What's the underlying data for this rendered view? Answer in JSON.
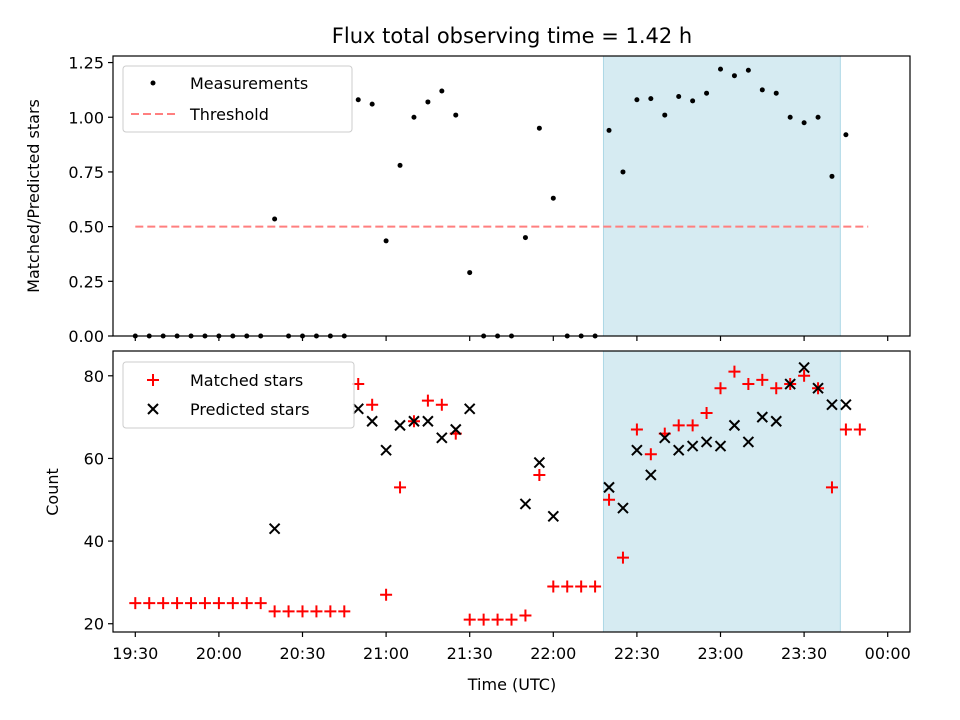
{
  "colors": {
    "shade": "#add8e6",
    "threshold": "#ff7f7f",
    "measurement": "#000000",
    "matched": "#ff0000",
    "predicted": "#000000"
  },
  "chart_data": [
    {
      "type": "scatter",
      "title": "Flux total observing time = 1.42 h",
      "xlabel": "",
      "ylabel": "Matched/Predicted stars",
      "xlim": [
        1162,
        1448
      ],
      "ylim": [
        0,
        1.28
      ],
      "xticks_minutes": [
        1170,
        1200,
        1230,
        1260,
        1290,
        1320,
        1350,
        1380,
        1410,
        1440
      ],
      "yticks": [
        "0.00",
        "0.25",
        "0.50",
        "0.75",
        "1.00",
        "1.25"
      ],
      "shaded_region": [
        1338,
        1423
      ],
      "legend": {
        "position": "top-left",
        "entries": [
          "Measurements",
          "Threshold"
        ]
      },
      "threshold": {
        "name": "Threshold",
        "y": 0.5,
        "x_range": [
          1170,
          1433
        ]
      },
      "series": [
        {
          "name": "Measurements",
          "x": [
            1170,
            1175,
            1180,
            1185,
            1190,
            1195,
            1200,
            1205,
            1210,
            1215,
            1220,
            1225,
            1230,
            1235,
            1240,
            1245,
            1250,
            1255,
            1260,
            1265,
            1270,
            1275,
            1280,
            1285,
            1290,
            1295,
            1300,
            1305,
            1310,
            1315,
            1320,
            1325,
            1330,
            1335,
            1340,
            1345,
            1350,
            1355,
            1360,
            1365,
            1370,
            1375,
            1380,
            1385,
            1390,
            1395,
            1400,
            1405,
            1410,
            1415,
            1420,
            1425
          ],
          "y": [
            0,
            0,
            0,
            0,
            0,
            0,
            0,
            0,
            0,
            0,
            0.535,
            0,
            0,
            0,
            0,
            0,
            1.08,
            1.06,
            0.435,
            0.78,
            1.0,
            1.07,
            1.12,
            1.01,
            0.29,
            0,
            0,
            0,
            0.45,
            0.95,
            0.63,
            0,
            0,
            0,
            0.94,
            0.75,
            1.08,
            1.085,
            1.01,
            1.095,
            1.075,
            1.11,
            1.22,
            1.19,
            1.215,
            1.125,
            1.11,
            1.0,
            0.975,
            1.0,
            0.73,
            0.92
          ]
        }
      ]
    },
    {
      "type": "scatter",
      "title": "",
      "xlabel": "Time (UTC)",
      "ylabel": "Count",
      "xlim": [
        1162,
        1448
      ],
      "ylim": [
        18,
        86
      ],
      "xticks_minutes": [
        1170,
        1200,
        1230,
        1260,
        1290,
        1320,
        1350,
        1380,
        1410,
        1440
      ],
      "xtick_labels": [
        "19:30",
        "20:00",
        "20:30",
        "21:00",
        "21:30",
        "22:00",
        "22:30",
        "23:00",
        "23:30",
        "00:00"
      ],
      "yticks": [
        "20",
        "40",
        "60",
        "80"
      ],
      "shaded_region": [
        1338,
        1423
      ],
      "legend": {
        "position": "top-left",
        "entries": [
          "Matched stars",
          "Predicted stars"
        ]
      },
      "series": [
        {
          "name": "Matched stars",
          "x": [
            1170,
            1175,
            1180,
            1185,
            1190,
            1195,
            1200,
            1205,
            1210,
            1215,
            1220,
            1225,
            1230,
            1235,
            1240,
            1245,
            1250,
            1255,
            1260,
            1265,
            1270,
            1275,
            1280,
            1285,
            1290,
            1295,
            1300,
            1305,
            1310,
            1315,
            1320,
            1325,
            1330,
            1335,
            1340,
            1345,
            1350,
            1355,
            1360,
            1365,
            1370,
            1375,
            1380,
            1385,
            1390,
            1395,
            1400,
            1405,
            1410,
            1415,
            1420,
            1425,
            1430
          ],
          "y": [
            25,
            25,
            25,
            25,
            25,
            25,
            25,
            25,
            25,
            25,
            23,
            23,
            23,
            23,
            23,
            23,
            78,
            73,
            27,
            53,
            69,
            74,
            73,
            66,
            21,
            21,
            21,
            21,
            22,
            56,
            29,
            29,
            29,
            29,
            50,
            36,
            67,
            61,
            66,
            68,
            68,
            71,
            77,
            81,
            78,
            79,
            77,
            78,
            80,
            77,
            53,
            67,
            67
          ]
        },
        {
          "name": "Predicted stars",
          "x": [
            1220,
            1250,
            1255,
            1260,
            1265,
            1270,
            1275,
            1280,
            1285,
            1290,
            1310,
            1315,
            1320,
            1340,
            1345,
            1350,
            1355,
            1360,
            1365,
            1370,
            1375,
            1380,
            1385,
            1390,
            1395,
            1400,
            1405,
            1410,
            1415,
            1420,
            1425
          ],
          "y": [
            43,
            72,
            69,
            62,
            68,
            69,
            69,
            65,
            67,
            72,
            49,
            59,
            46,
            53,
            48,
            62,
            56,
            65,
            62,
            63,
            64,
            63,
            68,
            64,
            70,
            69,
            78,
            82,
            77,
            73,
            73
          ]
        }
      ]
    }
  ]
}
